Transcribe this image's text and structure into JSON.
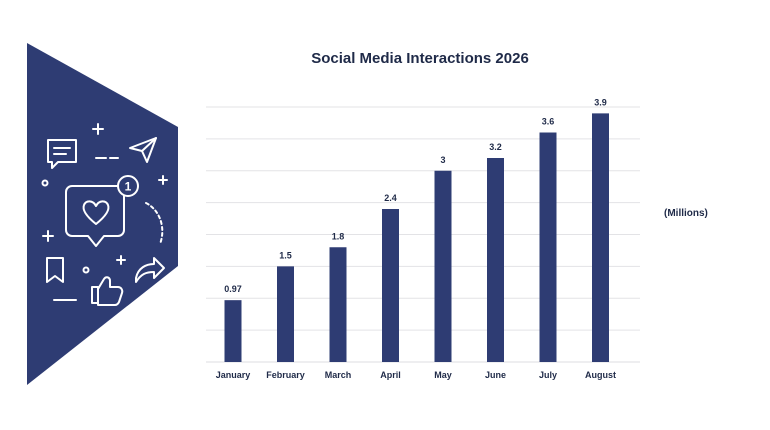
{
  "chart_data": {
    "type": "bar",
    "title": "Social Media Interactions 2026",
    "unit_label": "(Millions)",
    "categories": [
      "January",
      "February",
      "March",
      "April",
      "May",
      "June",
      "July",
      "August"
    ],
    "values": [
      0.97,
      1.5,
      1.8,
      2.4,
      3,
      3.2,
      3.6,
      3.9
    ],
    "value_labels": [
      "0.97",
      "1.5",
      "1.8",
      "2.4",
      "3",
      "3.2",
      "3.6",
      "3.9"
    ],
    "ylim": [
      0,
      4
    ],
    "grid": true,
    "bar_color": "#2e3c73",
    "grid_color": "#e3e3e6"
  },
  "banner": {
    "color": "#2e3c73",
    "icons": [
      "chat-bubble-icon",
      "send-icon",
      "heart-bubble-icon",
      "notification-badge-icon",
      "bookmark-icon",
      "thumbs-up-icon",
      "share-icon",
      "plus-icon",
      "dot-icon"
    ],
    "badge_count": "1"
  }
}
